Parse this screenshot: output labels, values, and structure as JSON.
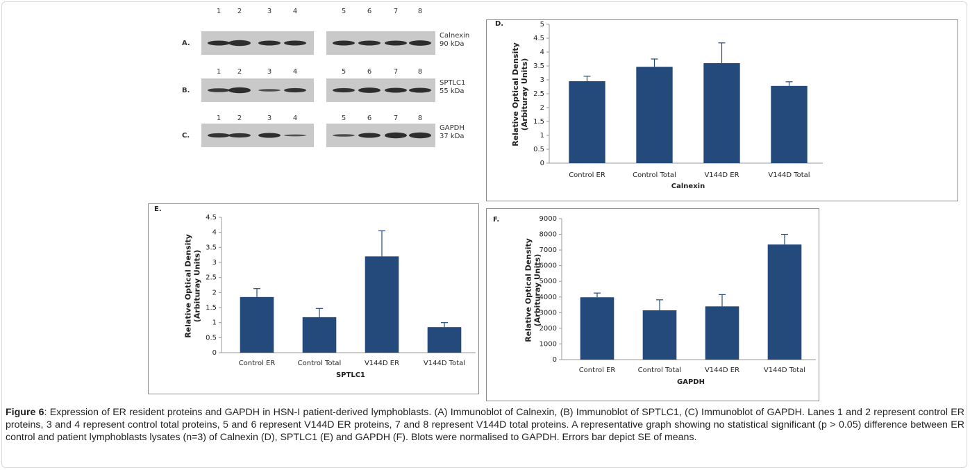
{
  "blots": {
    "rows": [
      {
        "label": "A.",
        "lanes": [
          "1",
          "2",
          "3",
          "4",
          "5",
          "6",
          "7",
          "8"
        ],
        "protein": "Calnexin",
        "size": "90 kDa"
      },
      {
        "label": "B.",
        "lanes": [
          "1",
          "2",
          "3",
          "4",
          "5",
          "6",
          "7",
          "8"
        ],
        "protein": "SPTLC1",
        "size": "55 kDa"
      },
      {
        "label": "C.",
        "lanes": [
          "1",
          "2",
          "3",
          "4",
          "5",
          "6",
          "7",
          "8"
        ],
        "protein": "GAPDH",
        "size": "37 kDa"
      }
    ]
  },
  "chart_data": [
    {
      "type": "bar",
      "panel": "D.",
      "categories": [
        "Control ER",
        "Control Total",
        "V144D ER",
        "V144D Total"
      ],
      "series": [
        {
          "color": "#244a7c",
          "values": [
            2.95,
            3.47,
            3.6,
            2.78
          ],
          "errors": [
            0.18,
            0.28,
            0.73,
            0.15
          ]
        }
      ],
      "x_label": "Calnexin",
      "y_label": "Relative Optical Density (Arbituray Units)",
      "ylim": [
        0,
        5
      ],
      "yticks": [
        0,
        0.5,
        1,
        1.5,
        2,
        2.5,
        3,
        3.5,
        4,
        4.5,
        5
      ]
    },
    {
      "type": "bar",
      "panel": "E.",
      "categories": [
        "Control ER",
        "Control Total",
        "V144D ER",
        "V144D Total"
      ],
      "series": [
        {
          "color": "#244a7c",
          "values": [
            1.85,
            1.18,
            3.2,
            0.85
          ],
          "errors": [
            0.28,
            0.29,
            0.85,
            0.15
          ]
        }
      ],
      "x_label": "SPTLC1",
      "y_label": "Relative Optical Density (Arbituray Units)",
      "ylim": [
        0,
        4.5
      ],
      "yticks": [
        0,
        0.5,
        1,
        1.5,
        2,
        2.5,
        3,
        3.5,
        4,
        4.5
      ]
    },
    {
      "type": "bar",
      "panel": "F.",
      "categories": [
        "Control ER",
        "Control Total",
        "V144D ER",
        "V144D Total"
      ],
      "series": [
        {
          "color": "#244a7c",
          "values": [
            3980,
            3150,
            3400,
            7350
          ],
          "errors": [
            270,
            670,
            750,
            650
          ]
        }
      ],
      "x_label": "GAPDH",
      "y_label": "Relative Optical Density (Arbituray Units)",
      "ylim": [
        0,
        9000
      ],
      "yticks": [
        0,
        1000,
        2000,
        3000,
        4000,
        5000,
        6000,
        7000,
        8000,
        9000
      ]
    }
  ],
  "caption": {
    "label": "Figure 6",
    "text": ": Expression of ER resident proteins and GAPDH in HSN-I patient-derived lymphoblasts. (A) Immunoblot of Calnexin, (B) Immunoblot of SPTLC1, (C) Immunoblot of GAPDH. Lanes 1 and 2 represent control ER proteins, 3 and 4 represent control total proteins, 5 and 6 represent V144D ER proteins, 7 and 8 represent V144D total proteins. A representative graph showing no statistical significant (p > 0.05) difference between ER control and patient lymphoblasts lysates (n=3) of Calnexin (D), SPTLC1 (E) and GAPDH (F). Blots were normalised to GAPDH. Errors bar depict SE of means."
  }
}
